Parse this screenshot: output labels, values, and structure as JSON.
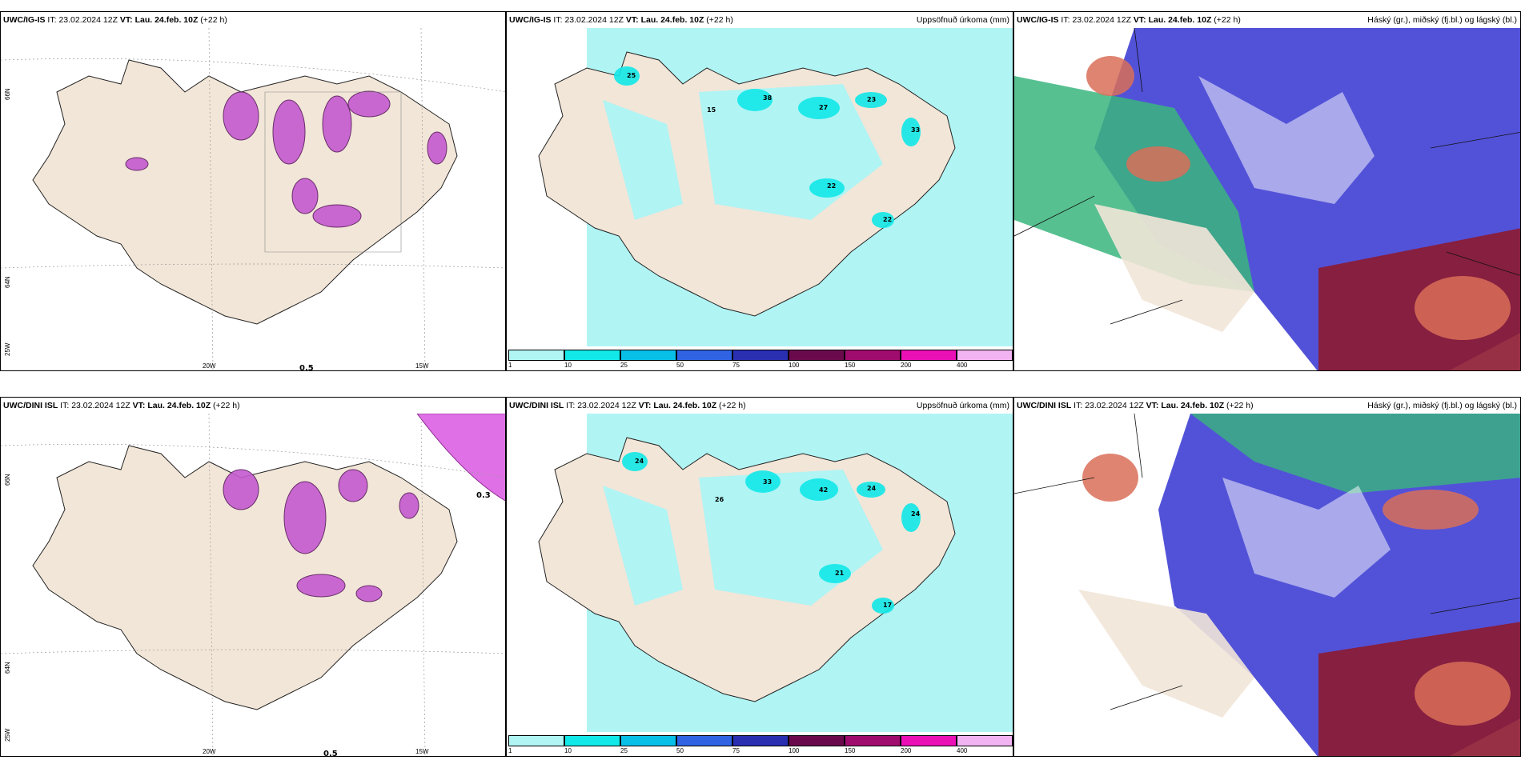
{
  "top": {
    "p1": {
      "model": "UWC/IG-IS",
      "it_label": "IT:",
      "it": "23.02.2024 12Z",
      "vt_label": "VT:",
      "vt": "Lau. 24.feb. 10Z",
      "lead": "(+22 h)"
    },
    "p2": {
      "model": "UWC/IG-IS",
      "it_label": "IT:",
      "it": "23.02.2024 12Z",
      "vt_label": "VT:",
      "vt": "Lau. 24.feb. 10Z",
      "lead": "(+22 h)",
      "title": "Uppsöfnuð úrkoma (mm)"
    },
    "p3": {
      "model": "UWC/IG-IS",
      "it_label": "IT:",
      "it": "23.02.2024 12Z",
      "vt_label": "VT:",
      "vt": "Lau. 24.feb. 10Z",
      "lead": "(+22 h)",
      "title": "Háský (gr.), miðský (fj.bl.) og lágský (bl.)"
    }
  },
  "bottom": {
    "p1": {
      "model": "UWC/DINI ISL",
      "it_label": "IT:",
      "it": "23.02.2024 12Z",
      "vt_label": "VT:",
      "vt": "Lau. 24.feb. 10Z",
      "lead": "(+22 h)"
    },
    "p2": {
      "model": "UWC/DINI ISL",
      "it_label": "IT:",
      "it": "23.02.2024 12Z",
      "vt_label": "VT:",
      "vt": "Lau. 24.feb. 10Z",
      "lead": "(+22 h)",
      "title": "Uppsöfnuð úrkoma (mm)"
    },
    "p3": {
      "model": "UWC/DINI ISL",
      "it_label": "IT:",
      "it": "23.02.2024 12Z",
      "vt_label": "VT:",
      "vt": "Lau. 24.feb. 10Z",
      "lead": "(+22 h)",
      "title": "Háský (gr.), miðský (fj.bl.) og lágský (bl.)"
    }
  },
  "grid_labels": {
    "lon_20": "20W",
    "lon_15": "15W",
    "lat_66": "66N",
    "lat_64": "64N",
    "lon_25": "25W"
  },
  "wind_values": {
    "top_south": "0.5",
    "bottom_ne": "0.3",
    "bottom_south": "0.5"
  },
  "colorbar": {
    "ticks": [
      "1",
      "10",
      "25",
      "50",
      "75",
      "100",
      "150",
      "200",
      "400"
    ],
    "colors": [
      "#b0f4f4",
      "#12e8e8",
      "#08bfe8",
      "#2f63e3",
      "#2a2fb2",
      "#6a0a4d",
      "#a00c6e",
      "#ea10b6",
      "#f2b3f2"
    ]
  },
  "colors": {
    "land": "#f2e6d8",
    "precip_light": "#b0f4f4",
    "precip_mid": "#12e8e8",
    "snow_purple": "#c45ad0",
    "high_cloud": "#3ab57e",
    "mid_cloud": "#5252d8",
    "low_cloud": "#8c1a30"
  }
}
